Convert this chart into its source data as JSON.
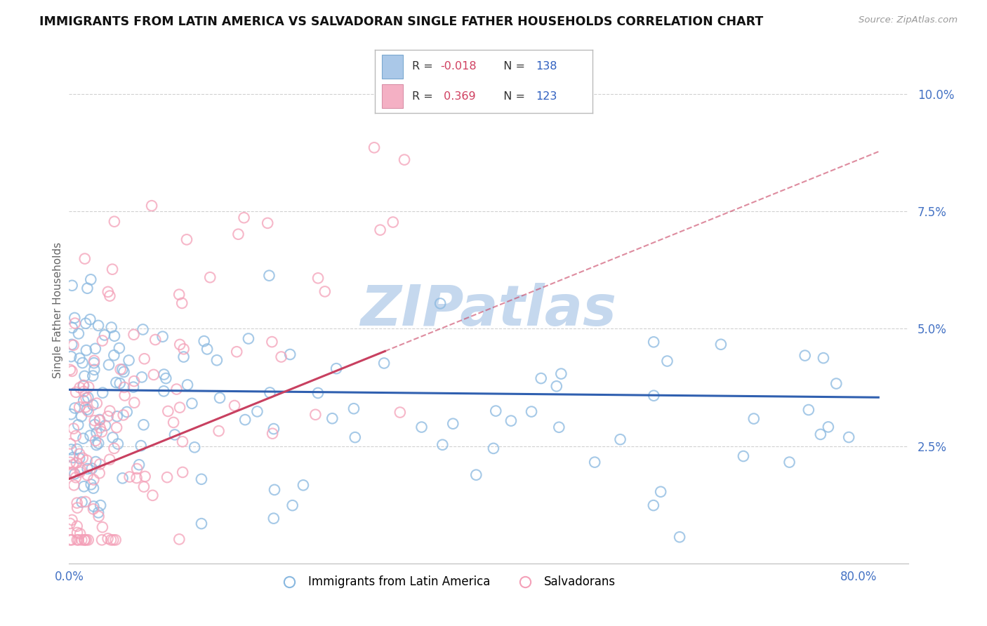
{
  "title": "IMMIGRANTS FROM LATIN AMERICA VS SALVADORAN SINGLE FATHER HOUSEHOLDS CORRELATION CHART",
  "source": "Source: ZipAtlas.com",
  "ylabel": "Single Father Households",
  "xlim": [
    0.0,
    0.85
  ],
  "ylim": [
    0.0,
    0.108
  ],
  "yticks": [
    0.025,
    0.05,
    0.075,
    0.1
  ],
  "ytick_labels": [
    "2.5%",
    "5.0%",
    "7.5%",
    "10.0%"
  ],
  "xticks": [
    0.0,
    0.8
  ],
  "xtick_labels": [
    "0.0%",
    "80.0%"
  ],
  "series1_name": "Immigrants from Latin America",
  "series1_color": "#89b8e0",
  "series1_edge": "#5590c8",
  "series2_name": "Salvadorans",
  "series2_color": "#f4a0b8",
  "series2_edge": "#d06080",
  "blue_trend_color": "#3060b0",
  "pink_trend_color": "#c84060",
  "background_color": "#ffffff",
  "grid_color": "#cccccc",
  "watermark_text": "ZIPatlas",
  "watermark_color": "#c5d8ee",
  "legend_box_color": "#f0f4ff",
  "legend_border_color": "#bbbbbb",
  "r_value_color": "#d04060",
  "n_value_color": "#3060c0",
  "axis_tick_color": "#4472c4",
  "ylabel_color": "#666666",
  "title_color": "#111111",
  "source_color": "#999999"
}
